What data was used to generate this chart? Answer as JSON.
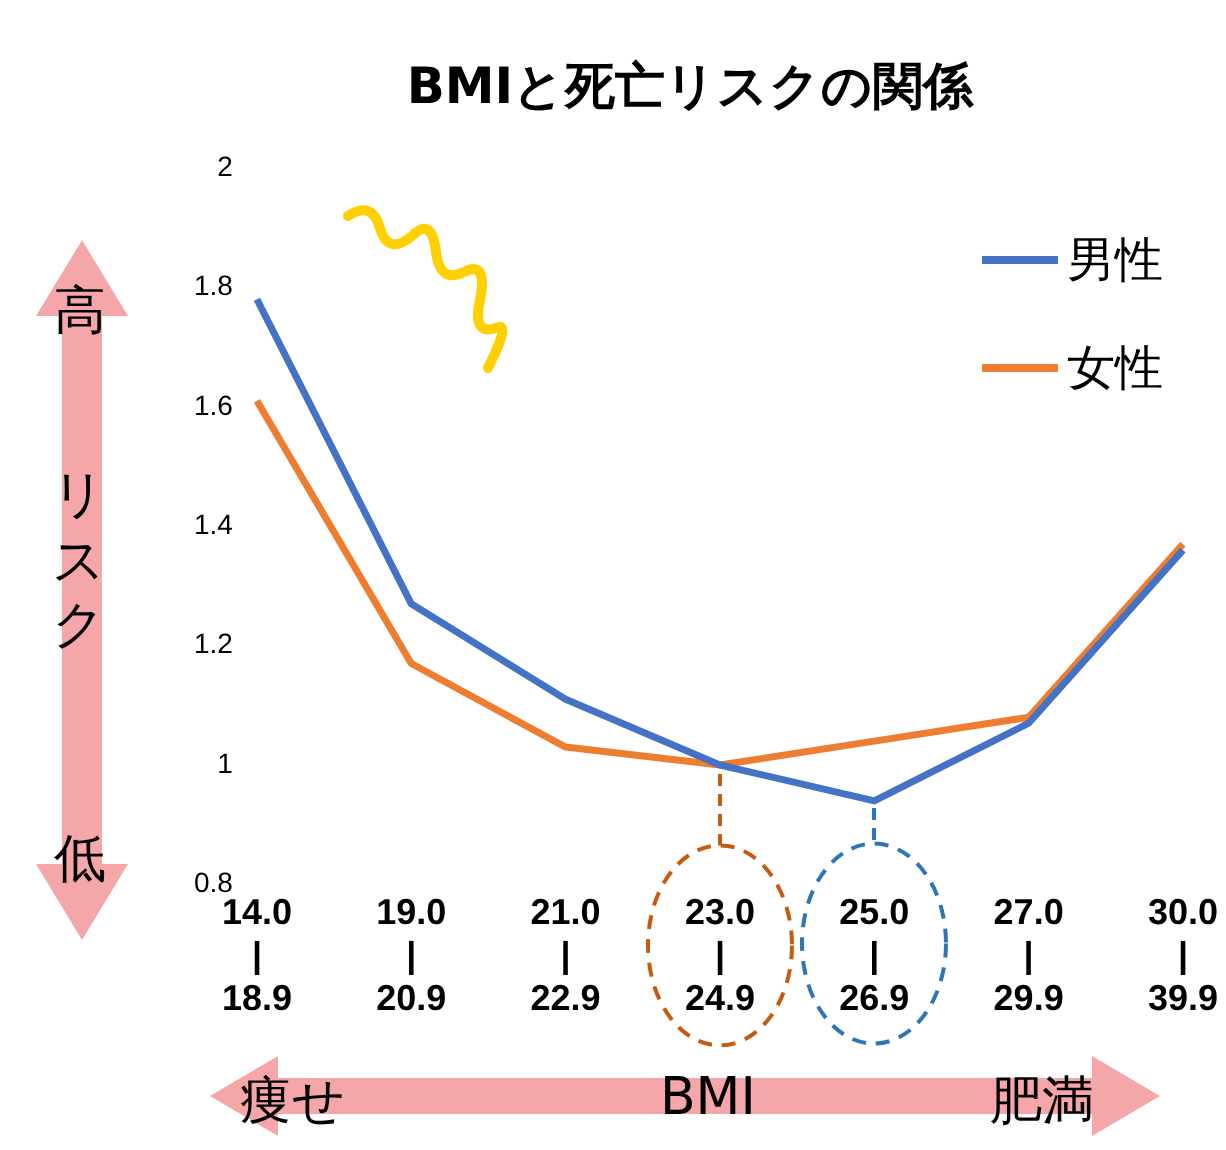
{
  "chart_data": {
    "type": "line",
    "title": "BMIと死亡リスクの関係",
    "xlabel": "BMI",
    "categories": [
      "14.0\n|\n18.9",
      "19.0\n|\n20.9",
      "21.0\n|\n22.9",
      "23.0\n|\n24.9",
      "25.0\n|\n26.9",
      "27.0\n|\n29.9",
      "30.0\n|\n39.9"
    ],
    "series": [
      {
        "name": "男性",
        "color": "#4472c4",
        "values": [
          1.78,
          1.27,
          1.11,
          1.0,
          0.94,
          1.07,
          1.36
        ]
      },
      {
        "name": "女性",
        "color": "#ed7d31",
        "values": [
          1.61,
          1.17,
          1.03,
          1.0,
          1.04,
          1.08,
          1.37
        ]
      }
    ],
    "ylim": [
      0.8,
      2
    ],
    "yticks": [
      0.8,
      1,
      1.2,
      1.4,
      1.6,
      1.8,
      2
    ],
    "annotations": [
      "高",
      "リスク",
      "低",
      "痩せ",
      "肥満"
    ],
    "grid": false,
    "legend": "top right",
    "marker": "none",
    "line_style": "solid"
  }
}
